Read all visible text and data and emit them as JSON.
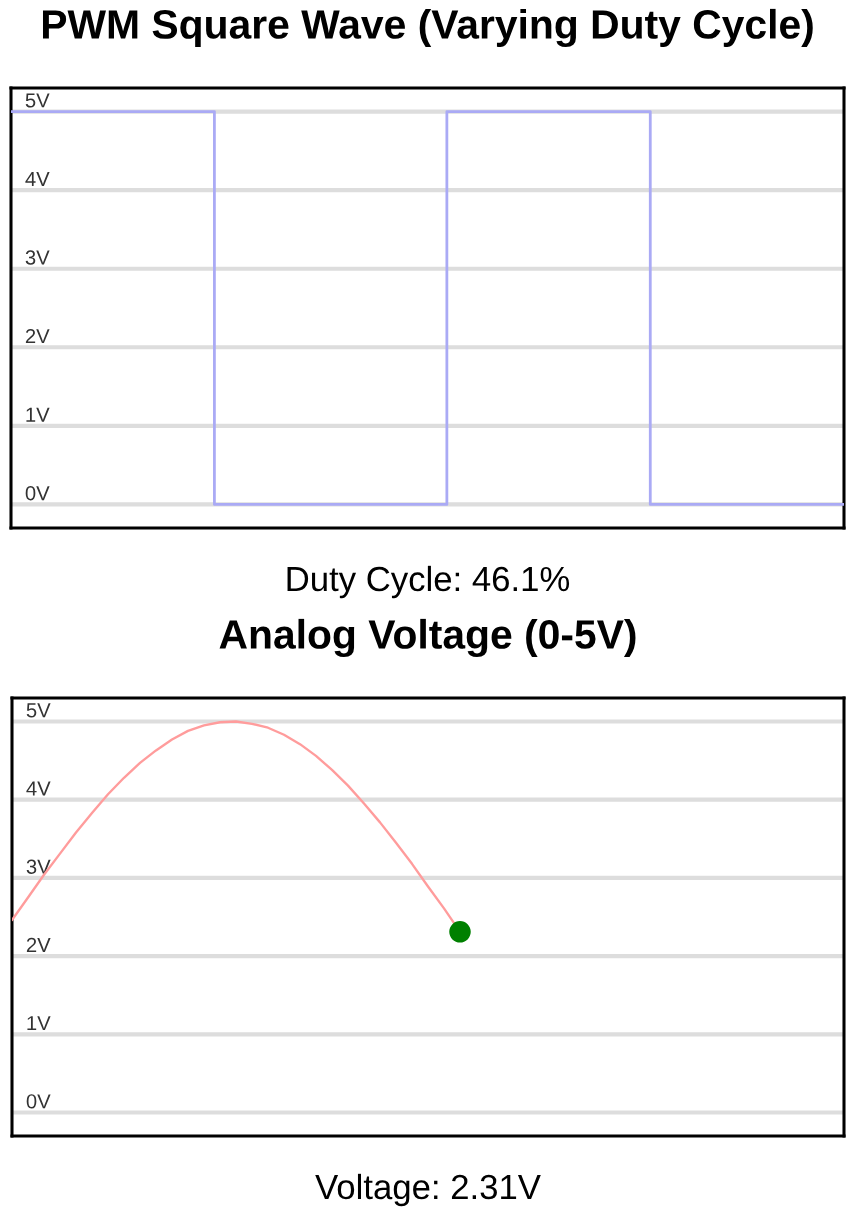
{
  "chart_data": [
    {
      "type": "step",
      "title": "PWM Square Wave (Varying Duty Cycle)",
      "categories": [
        null,
        null,
        null,
        null,
        null,
        null,
        null,
        null,
        null,
        null,
        null,
        null,
        null,
        null,
        null,
        null,
        null,
        null,
        null,
        null,
        null,
        null,
        null,
        null,
        null,
        null,
        null,
        null,
        null,
        null,
        null,
        null,
        null,
        null,
        null,
        null,
        null,
        null,
        null,
        null,
        null,
        null,
        null,
        null,
        null,
        null,
        null,
        null,
        null,
        null,
        null,
        null,
        null,
        null,
        null,
        null,
        null,
        null,
        null,
        null,
        null,
        null,
        null,
        null,
        null,
        null,
        null,
        null,
        null,
        null,
        null,
        null,
        null,
        null,
        null,
        null,
        null,
        null,
        null,
        null,
        null,
        null,
        null,
        null,
        null,
        null,
        null
      ],
      "series": [
        {
          "color": "#aaaaf5",
          "values": [
            5,
            5,
            5,
            5,
            5,
            5,
            5,
            5,
            5,
            5,
            5,
            5,
            5,
            5,
            5,
            5,
            5,
            5,
            5,
            5,
            5,
            0,
            0,
            0,
            0,
            0,
            0,
            0,
            0,
            0,
            0,
            0,
            0,
            0,
            0,
            0,
            0,
            0,
            0,
            0,
            0,
            0,
            0,
            0,
            0,
            5,
            5,
            5,
            5,
            5,
            5,
            5,
            5,
            5,
            5,
            5,
            5,
            5,
            5,
            5,
            5,
            5,
            5,
            5,
            5,
            5,
            0,
            0,
            0,
            0,
            0,
            0,
            0,
            0,
            0,
            0,
            0,
            0,
            0,
            0,
            0,
            0,
            0,
            0,
            0,
            0,
            0
          ]
        }
      ],
      "ylim": [
        -0.3,
        5.3
      ],
      "yticks": [
        {
          "value": 0,
          "label": "0V"
        },
        {
          "value": 1,
          "label": "1V"
        },
        {
          "value": 2,
          "label": "2V"
        },
        {
          "value": 3,
          "label": "3V"
        },
        {
          "value": 4,
          "label": "4V"
        },
        {
          "value": 5,
          "label": "5V"
        }
      ],
      "grid": "y",
      "tick_labels": "y",
      "annotations": [
        "Duty Cycle: 46.1%"
      ]
    },
    {
      "type": "line",
      "title": "Analog Voltage (0-5V)",
      "categories": [
        null,
        null,
        null,
        null,
        null,
        null,
        null,
        null,
        null,
        null,
        null,
        null,
        null,
        null,
        null,
        null,
        null,
        null,
        null,
        null,
        null,
        null,
        null,
        null,
        null,
        null,
        null,
        null,
        null,
        null,
        null,
        null,
        null,
        null,
        null,
        null,
        null,
        null,
        null,
        null,
        null,
        null,
        null,
        null,
        null,
        null,
        null,
        null,
        null,
        null,
        null,
        null,
        null
      ],
      "series": [
        {
          "color": "#ff9c9c",
          "values": [
            2.46,
            2.75,
            3.04,
            3.31,
            3.58,
            3.83,
            4.07,
            4.28,
            4.47,
            4.63,
            4.77,
            4.88,
            4.95,
            4.99,
            5.0,
            4.97,
            4.92,
            4.83,
            4.71,
            4.56,
            4.38,
            4.18,
            3.95,
            3.71,
            3.45,
            3.18,
            2.89,
            2.61,
            2.31,
            null,
            null,
            null,
            null,
            null,
            null,
            null,
            null,
            null,
            null,
            null,
            null,
            null,
            null,
            null,
            null,
            null,
            null,
            null,
            null,
            null,
            null,
            null,
            null
          ]
        },
        {
          "type": "scatter",
          "marker": "circle",
          "color": "#008000",
          "values": [
            null,
            null,
            null,
            null,
            null,
            null,
            null,
            null,
            null,
            null,
            null,
            null,
            null,
            null,
            null,
            null,
            null,
            null,
            null,
            null,
            null,
            null,
            null,
            null,
            null,
            null,
            null,
            null,
            2.31,
            null,
            null,
            null,
            null,
            null,
            null,
            null,
            null,
            null,
            null,
            null,
            null,
            null,
            null,
            null,
            null,
            null,
            null,
            null,
            null,
            null,
            null,
            null,
            null
          ]
        }
      ],
      "ylim": [
        -0.3,
        5.3
      ],
      "yticks": [
        {
          "value": 0,
          "label": "0V"
        },
        {
          "value": 1,
          "label": "1V"
        },
        {
          "value": 2,
          "label": "2V"
        },
        {
          "value": 3,
          "label": "3V"
        },
        {
          "value": 4,
          "label": "4V"
        },
        {
          "value": 5,
          "label": "5V"
        }
      ],
      "grid": "y",
      "tick_labels": "y",
      "annotations": [
        "Voltage: 2.31V"
      ]
    }
  ]
}
